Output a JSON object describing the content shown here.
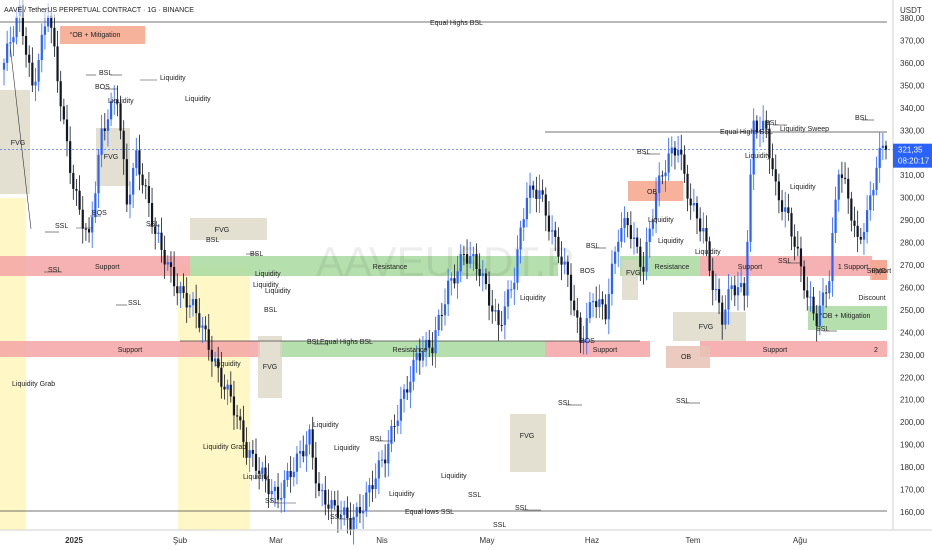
{
  "window": {
    "title": "AAVE / TetherUS PERPETUAL CONTRACT · 1G · BINANCE"
  },
  "watermark": "AAVEUSDT.P",
  "price_axis": {
    "unit": "USDT",
    "ticks": [
      "380,00",
      "370,00",
      "360,00",
      "350,00",
      "340,00",
      "330,00",
      "320,00",
      "310,00",
      "300,00",
      "290,00",
      "280,00",
      "270,00",
      "260,00",
      "250,00",
      "240,00",
      "230,00",
      "220,00",
      "210,00",
      "200,00",
      "190,00",
      "180,00",
      "170,00",
      "160,00"
    ],
    "last_price": "321,35",
    "countdown": "08:20:17"
  },
  "time_axis": {
    "labels": [
      "2025",
      "Şub",
      "Mar",
      "Nis",
      "May",
      "Haz",
      "Tem",
      "Ağu"
    ]
  },
  "zones": [
    {
      "label": "Support",
      "color": "#f4a5a5"
    },
    {
      "label": "Resistance",
      "color": "#a8dba0"
    },
    {
      "label": "Support",
      "color": "#f4a5a5"
    },
    {
      "label": "Resistance",
      "color": "#a8dba0"
    },
    {
      "label": "Support",
      "color": "#f4a5a5"
    },
    {
      "label": "Resistance",
      "color": "#a8dba0"
    },
    {
      "label": "Support",
      "color": "#f4a5a5"
    },
    {
      "label": "1  Support",
      "color": "#f4a5a5"
    },
    {
      "label": "Support",
      "color": "#f4a5a5"
    },
    {
      "label": "2",
      "color": "#f4a5a5"
    },
    {
      "label": "Support",
      "color": "#f4a5a5"
    },
    {
      "label": "°OB + Mitigation",
      "color": "#f4a58a"
    },
    {
      "label": "OB",
      "color": "#f4a58a"
    },
    {
      "label": "OB",
      "color": "#e8c2b4"
    },
    {
      "label": "°OB + Mitigation",
      "color": "#a8dba0"
    },
    {
      "label": "FVG",
      "color": "#d9d6c3"
    },
    {
      "label": "FVG",
      "color": "#d9d6c3"
    },
    {
      "label": "FVG",
      "color": "#d9d6c3"
    },
    {
      "label": "FVG",
      "color": "#d9d6c3"
    },
    {
      "label": "FVG",
      "color": "#d9d6c3"
    },
    {
      "label": "FVG",
      "color": "#d9d6c3"
    },
    {
      "label": "FVG",
      "color": "#d9d6c3"
    },
    {
      "label": "FVG",
      "color": "#f4a58a"
    },
    {
      "label": "Discount",
      "color": "#fff4b3"
    }
  ],
  "annotations": [
    "Equal Highs BSL",
    "Equal Highs BSL",
    "Equal Highs BSL",
    "Equal lows SSL",
    "Liquidity Sweep",
    "Liquidity Grab",
    "Liquidity Grab",
    "BOS",
    "BOS",
    "BOS",
    "BOS",
    "BSL",
    "BSL",
    "BSL",
    "BSL",
    "BSL",
    "BSL",
    "BSL",
    "BSL",
    "BSL",
    "BSL",
    "SSL",
    "SSL",
    "SSL",
    "SSL",
    "SSL",
    "SSL",
    "SSL",
    "SSL",
    "SSL",
    "SSL",
    "SSL",
    "SSL",
    "SSL",
    "Liquidity",
    "Liquidity",
    "Liquidity",
    "Liquidity",
    "Liquidity",
    "Liquidity",
    "Liquidity",
    "Liquidity",
    "Liquidity",
    "Liquidity",
    "Liquidity",
    "Liquidity",
    "Liquidity",
    "Liquidity",
    "Liquidity",
    "Liquidity",
    "Liquidity",
    "Liquidity"
  ],
  "colors": {
    "up": "#2962ff",
    "down": "#131722",
    "highlight": "#fff4b3",
    "last_price": "#2962ff"
  },
  "chart_data": {
    "type": "candlestick",
    "symbol": "AAVEUSDT.P",
    "interval": "1G",
    "ylim": [
      152,
      388
    ],
    "x_months": [
      "2025",
      "Şub",
      "Mar",
      "Nis",
      "May",
      "Haz",
      "Tem",
      "Ağu"
    ],
    "key_levels": [
      383,
      334,
      240,
      165
    ],
    "path_knots": [
      [
        0,
        360
      ],
      [
        5,
        381
      ],
      [
        9,
        350
      ],
      [
        14,
        385
      ],
      [
        19,
        330
      ],
      [
        22,
        305
      ],
      [
        27,
        283
      ],
      [
        31,
        327
      ],
      [
        36,
        345
      ],
      [
        39,
        300
      ],
      [
        42,
        320
      ],
      [
        48,
        282
      ],
      [
        55,
        262
      ],
      [
        60,
        250
      ],
      [
        66,
        230
      ],
      [
        72,
        212
      ],
      [
        77,
        185
      ],
      [
        82,
        178
      ],
      [
        87,
        167
      ],
      [
        92,
        178
      ],
      [
        97,
        195
      ],
      [
        100,
        170
      ],
      [
        105,
        159
      ],
      [
        110,
        156
      ],
      [
        115,
        168
      ],
      [
        121,
        183
      ],
      [
        126,
        210
      ],
      [
        131,
        230
      ],
      [
        136,
        232
      ],
      [
        141,
        262
      ],
      [
        146,
        275
      ],
      [
        151,
        266
      ],
      [
        157,
        245
      ],
      [
        162,
        264
      ],
      [
        166,
        300
      ],
      [
        170,
        305
      ],
      [
        175,
        280
      ],
      [
        179,
        262
      ],
      [
        183,
        236
      ],
      [
        187,
        258
      ],
      [
        191,
        248
      ],
      [
        195,
        282
      ],
      [
        198,
        290
      ],
      [
        203,
        270
      ],
      [
        207,
        300
      ],
      [
        211,
        317
      ],
      [
        214,
        325
      ],
      [
        218,
        298
      ],
      [
        222,
        283
      ],
      [
        225,
        260
      ],
      [
        228,
        248
      ],
      [
        231,
        263
      ],
      [
        235,
        257
      ],
      [
        238,
        330
      ],
      [
        242,
        331
      ],
      [
        245,
        306
      ],
      [
        249,
        290
      ],
      [
        252,
        272
      ],
      [
        255,
        255
      ],
      [
        258,
        248
      ],
      [
        262,
        266
      ],
      [
        265,
        312
      ],
      [
        268,
        298
      ],
      [
        271,
        280
      ],
      [
        274,
        294
      ],
      [
        277,
        315
      ],
      [
        280,
        325
      ]
    ],
    "last": 321.35
  }
}
